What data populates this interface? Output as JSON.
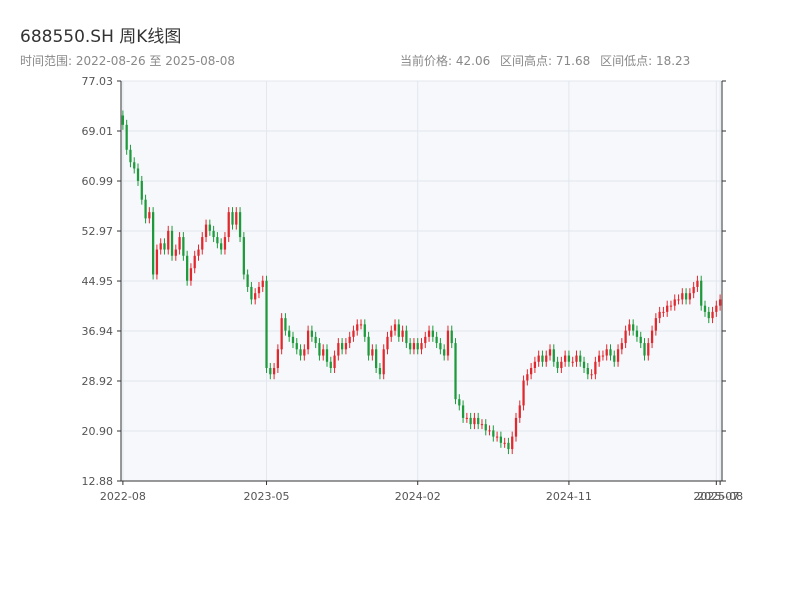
{
  "header": {
    "title": "688550.SH 周K线图",
    "range_label": "时间范围: 2022-08-26 至 2025-08-08",
    "current_price": "当前价格: 42.06",
    "range_high": "区间高点: 71.68",
    "range_low": "区间低点: 18.23"
  },
  "colors": {
    "up": "#e0282e",
    "down": "#1e9a3c",
    "plot_bg": "#f6f8fb",
    "grid": "#e3e7ee"
  },
  "chart_data": {
    "type": "candlestick",
    "title": "688550.SH 周K线图",
    "ylim": [
      12.88,
      77.03
    ],
    "y_ticks": [
      "12.88",
      "20.90",
      "28.92",
      "36.94",
      "44.95",
      "52.97",
      "60.99",
      "69.01",
      "77.03"
    ],
    "x_ticks": [
      {
        "label": "2022-08",
        "index": 0
      },
      {
        "label": "2023-05",
        "index": 38
      },
      {
        "label": "2024-02",
        "index": 78
      },
      {
        "label": "2024-11",
        "index": 118
      },
      {
        "label": "2025-07",
        "index": 157
      },
      {
        "label": "2025-08",
        "index": 158
      }
    ],
    "close_series": [
      70,
      66,
      64,
      63,
      61,
      58,
      55,
      56,
      46,
      50,
      51,
      50,
      53,
      49,
      50,
      52,
      49,
      45,
      47,
      49,
      50,
      52,
      54,
      53,
      52,
      51,
      50,
      52,
      56,
      54,
      56,
      52,
      46,
      44,
      42,
      43,
      44,
      45,
      31,
      30,
      31,
      34,
      39,
      37,
      36,
      35,
      34,
      33,
      34,
      37,
      36,
      35,
      33,
      34,
      32,
      31,
      33,
      35,
      34,
      35,
      36,
      37,
      38,
      38,
      36,
      33,
      34,
      31,
      30,
      34,
      36,
      37,
      38,
      36,
      37,
      35,
      34,
      35,
      34,
      35,
      36,
      37,
      36,
      35,
      34,
      33,
      37,
      35,
      26,
      25,
      23,
      23,
      22,
      23,
      22,
      22,
      21,
      21,
      20,
      20,
      19,
      19,
      18,
      20,
      23,
      25,
      29,
      30,
      31,
      32,
      33,
      32,
      33,
      34,
      32,
      31,
      32,
      33,
      32,
      32,
      33,
      32,
      31,
      30,
      30,
      32,
      33,
      33,
      34,
      33,
      32,
      34,
      35,
      37,
      38,
      37,
      36,
      35,
      33,
      35,
      37,
      39,
      40,
      40,
      41,
      41,
      42,
      42,
      43,
      42,
      43,
      44,
      45,
      41,
      40,
      39,
      40,
      41,
      42
    ]
  }
}
